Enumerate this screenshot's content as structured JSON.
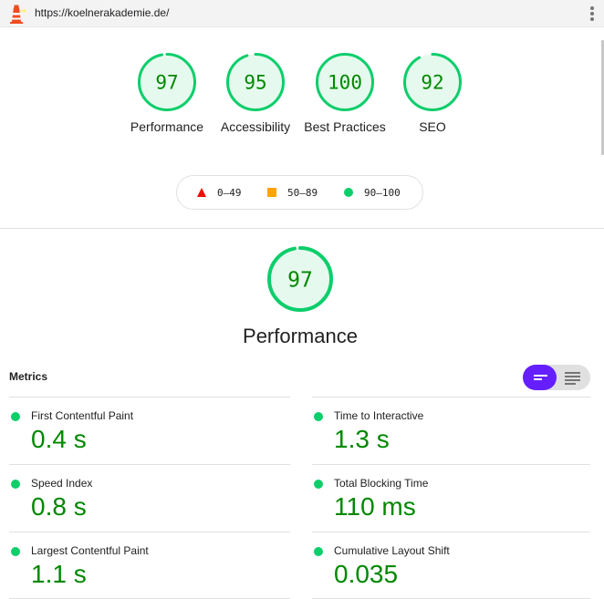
{
  "browser": {
    "url": "https://koelnerakademie.de/"
  },
  "summary": {
    "gauges": [
      {
        "label": "Performance",
        "score": "97",
        "fraction": 0.97
      },
      {
        "label": "Accessibility",
        "score": "95",
        "fraction": 0.95
      },
      {
        "label": "Best Practices",
        "score": "100",
        "fraction": 1.0
      },
      {
        "label": "SEO",
        "score": "92",
        "fraction": 0.92
      }
    ]
  },
  "legend": {
    "fail": "0–49",
    "average": "50–89",
    "pass": "90–100"
  },
  "performance": {
    "score": "97",
    "fraction": 0.97,
    "title": "Performance"
  },
  "metrics": {
    "heading": "Metrics",
    "items": [
      {
        "name": "First Contentful Paint",
        "value": "0.4 s"
      },
      {
        "name": "Time to Interactive",
        "value": "1.3 s"
      },
      {
        "name": "Speed Index",
        "value": "0.8 s"
      },
      {
        "name": "Total Blocking Time",
        "value": "110 ms"
      },
      {
        "name": "Largest Contentful Paint",
        "value": "1.1 s"
      },
      {
        "name": "Cumulative Layout Shift",
        "value": "0.035"
      }
    ]
  },
  "colors": {
    "pass": "#0cce6b",
    "pass_text": "#008800",
    "average": "#ffa400",
    "fail": "#eb0f00",
    "accent": "#651fff"
  }
}
